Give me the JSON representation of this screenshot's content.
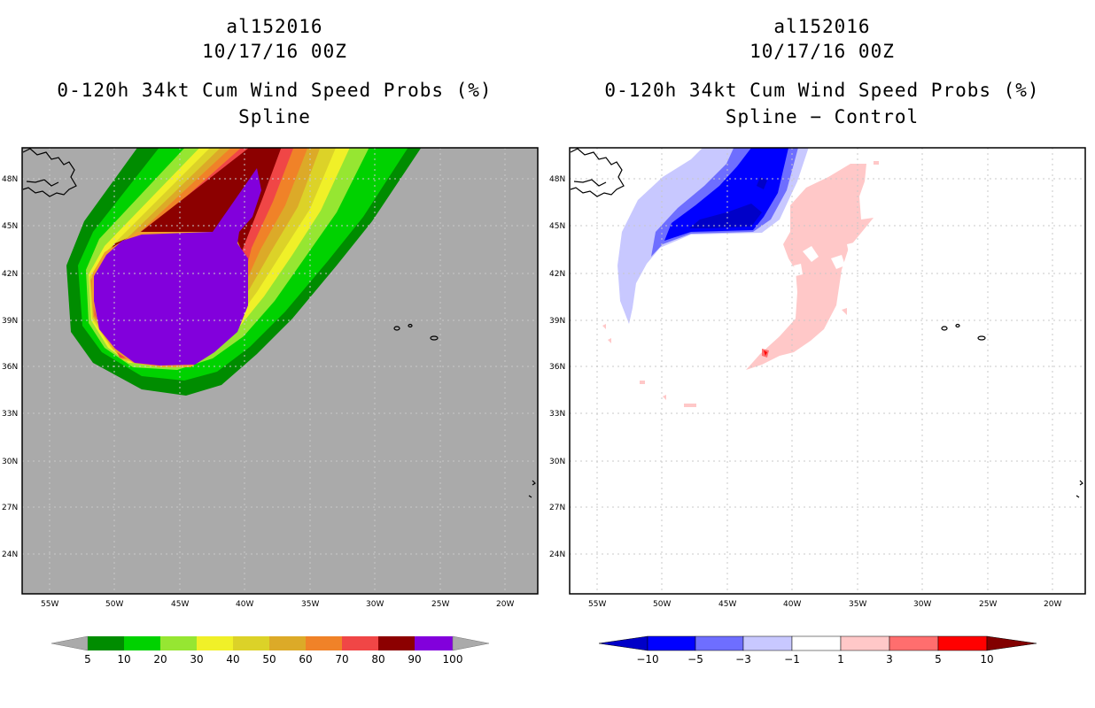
{
  "left": {
    "title": {
      "storm_id": "al152016",
      "date": "10/17/16 00Z",
      "product": "0-120h 34kt Cum Wind Speed Probs (%)",
      "method": "Spline"
    },
    "colorbar": {
      "labels": [
        "5",
        "10",
        "20",
        "30",
        "40",
        "50",
        "60",
        "70",
        "80",
        "90",
        "100"
      ],
      "colors": [
        "#008c00",
        "#00d200",
        "#96e632",
        "#f0f028",
        "#dcd228",
        "#dcaa28",
        "#f08228",
        "#f04646",
        "#8c0000",
        "#8200dc"
      ],
      "extend_color": "#aaaaaa"
    },
    "background_color": "#aaaaaa"
  },
  "right": {
    "title": {
      "storm_id": "al152016",
      "date": "10/17/16 00Z",
      "product": "0-120h 34kt Cum Wind Speed Probs (%)",
      "method": "Spline − Control"
    },
    "colorbar": {
      "labels": [
        "−10",
        "−5",
        "−3",
        "−1",
        "1",
        "3",
        "5",
        "10"
      ],
      "colors": [
        "#0000c8",
        "#0000ff",
        "#6e6eff",
        "#c8c8ff",
        "#ffffff",
        "#ffc8c8",
        "#ff6e6e",
        "#ff0000",
        "#820000"
      ]
    },
    "background_color": "#ffffff"
  },
  "axes": {
    "lon_labels": [
      "55W",
      "50W",
      "45W",
      "40W",
      "35W",
      "30W",
      "25W",
      "20W"
    ],
    "lat_labels": [
      "48N",
      "45N",
      "42N",
      "39N",
      "36N",
      "33N",
      "30N",
      "27N",
      "24N"
    ]
  },
  "legend_colors": {
    "left_shades": [
      "#008c00",
      "#00d200",
      "#96e632",
      "#f0f028",
      "#dcd228",
      "#dcaa28",
      "#f08228",
      "#f04646",
      "#8c0000",
      "#8200dc"
    ],
    "right_shades": [
      "#0000c8",
      "#0000ff",
      "#6e6eff",
      "#c8c8ff",
      "#ffc8c8",
      "#ff6e6e",
      "#ff0000",
      "#820000"
    ]
  }
}
